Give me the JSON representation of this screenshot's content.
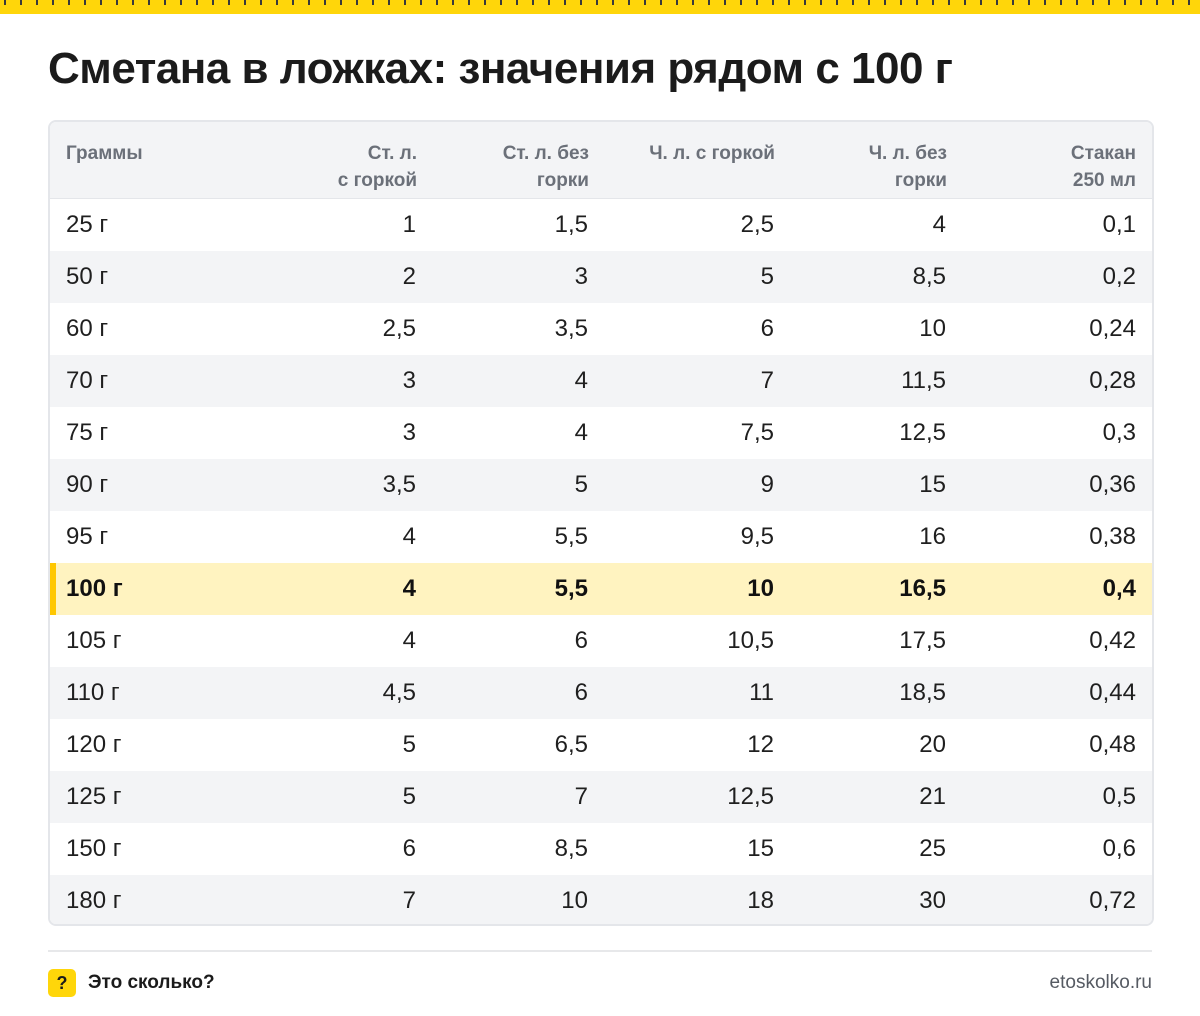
{
  "title": "Сметана в ложках: значения рядом с 100 г",
  "headers": [
    "Граммы",
    "Ст. л.\nс горкой",
    "Ст. л. без\nгорки",
    "Ч. л. с горкой",
    "Ч. л. без\nгорки",
    "Стакан\n250 мл"
  ],
  "rows": [
    [
      "25 г",
      "1",
      "1,5",
      "2,5",
      "4",
      "0,1"
    ],
    [
      "50 г",
      "2",
      "3",
      "5",
      "8,5",
      "0,2"
    ],
    [
      "60 г",
      "2,5",
      "3,5",
      "6",
      "10",
      "0,24"
    ],
    [
      "70 г",
      "3",
      "4",
      "7",
      "11,5",
      "0,28"
    ],
    [
      "75 г",
      "3",
      "4",
      "7,5",
      "12,5",
      "0,3"
    ],
    [
      "90 г",
      "3,5",
      "5",
      "9",
      "15",
      "0,36"
    ],
    [
      "95 г",
      "4",
      "5,5",
      "9,5",
      "16",
      "0,38"
    ],
    [
      "100 г",
      "4",
      "5,5",
      "10",
      "16,5",
      "0,4"
    ],
    [
      "105 г",
      "4",
      "6",
      "10,5",
      "17,5",
      "0,42"
    ],
    [
      "110 г",
      "4,5",
      "6",
      "11",
      "18,5",
      "0,44"
    ],
    [
      "120 г",
      "5",
      "6,5",
      "12",
      "20",
      "0,48"
    ],
    [
      "125 г",
      "5",
      "7",
      "12,5",
      "21",
      "0,5"
    ],
    [
      "150 г",
      "6",
      "8,5",
      "15",
      "25",
      "0,6"
    ],
    [
      "180 г",
      "7",
      "10",
      "18",
      "30",
      "0,72"
    ]
  ],
  "highlight_row": "100 г",
  "colors": {
    "accent": "#ffd60a",
    "highlight_bg": "#fff3c0",
    "highlight_bar": "#ffc700",
    "stripe": "#f3f4f6"
  },
  "footer": {
    "icon": "question-icon",
    "icon_glyph": "?",
    "brand": "Это сколько?",
    "site": "etoskolko.ru"
  }
}
